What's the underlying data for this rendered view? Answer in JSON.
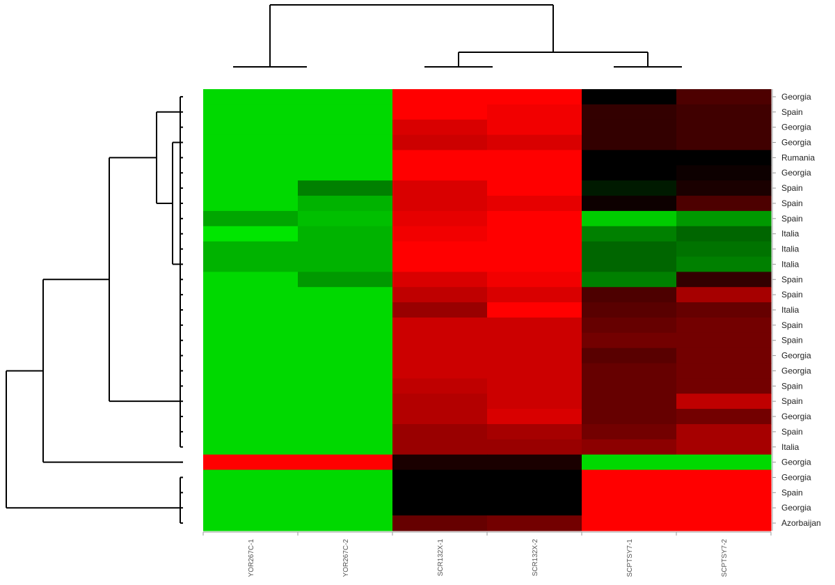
{
  "chart_data": {
    "type": "heatmap",
    "title": "",
    "colormap": {
      "low": "#00ff00",
      "mid": "#000000",
      "high": "#ff0000"
    },
    "value_range": [
      -1,
      1
    ],
    "columns": [
      "YOR267C-1",
      "YOR267C-2",
      "SCR132X-1",
      "SCR132X-2",
      "SCPTSY7-1",
      "SCPTSY7-2"
    ],
    "row_labels": [
      "Georgia",
      "Spain",
      "Georgia",
      "Georgia",
      "Rumania",
      "Georgia",
      "Spain",
      "Spain",
      "Spain",
      "Italia",
      "Italia",
      "Italia",
      "Spain",
      "Spain",
      "Italia",
      "Spain",
      "Spain",
      "Georgia",
      "Georgia",
      "Spain",
      "Spain",
      "Georgia",
      "Spain",
      "Italia",
      "Georgia",
      "Georgia",
      "Spain",
      "Georgia",
      "Azorbaijan"
    ],
    "values": [
      [
        -0.85,
        -0.85,
        1.0,
        1.0,
        0.0,
        0.3
      ],
      [
        -0.85,
        -0.85,
        1.0,
        0.95,
        0.2,
        0.25
      ],
      [
        -0.85,
        -0.85,
        0.85,
        0.95,
        0.2,
        0.25
      ],
      [
        -0.85,
        -0.85,
        0.8,
        0.85,
        0.2,
        0.25
      ],
      [
        -0.85,
        -0.85,
        1.0,
        1.0,
        0.0,
        0.0
      ],
      [
        -0.85,
        -0.85,
        1.0,
        1.0,
        0.0,
        0.05
      ],
      [
        -0.85,
        -0.5,
        0.85,
        1.0,
        -0.1,
        0.1
      ],
      [
        -0.85,
        -0.7,
        0.85,
        0.9,
        0.05,
        0.3
      ],
      [
        -0.65,
        -0.75,
        0.9,
        1.0,
        -0.8,
        -0.6
      ],
      [
        -0.9,
        -0.7,
        0.95,
        1.0,
        -0.5,
        -0.4
      ],
      [
        -0.7,
        -0.7,
        1.0,
        1.0,
        -0.4,
        -0.45
      ],
      [
        -0.7,
        -0.7,
        1.0,
        1.0,
        -0.4,
        -0.5
      ],
      [
        -0.85,
        -0.6,
        0.85,
        0.95,
        -0.5,
        0.2
      ],
      [
        -0.85,
        -0.85,
        0.75,
        0.85,
        0.3,
        0.65
      ],
      [
        -0.85,
        -0.85,
        0.6,
        1.0,
        0.35,
        0.4
      ],
      [
        -0.85,
        -0.85,
        0.8,
        0.8,
        0.4,
        0.45
      ],
      [
        -0.85,
        -0.85,
        0.8,
        0.8,
        0.45,
        0.45
      ],
      [
        -0.85,
        -0.85,
        0.8,
        0.8,
        0.35,
        0.45
      ],
      [
        -0.85,
        -0.85,
        0.8,
        0.8,
        0.4,
        0.45
      ],
      [
        -0.85,
        -0.85,
        0.75,
        0.8,
        0.4,
        0.45
      ],
      [
        -0.85,
        -0.85,
        0.7,
        0.8,
        0.4,
        0.75
      ],
      [
        -0.85,
        -0.85,
        0.7,
        0.85,
        0.4,
        0.45
      ],
      [
        -0.85,
        -0.85,
        0.6,
        0.65,
        0.45,
        0.65
      ],
      [
        -0.85,
        -0.85,
        0.6,
        0.6,
        0.55,
        0.65
      ],
      [
        1.0,
        1.0,
        0.1,
        0.1,
        -0.85,
        -0.85
      ],
      [
        -0.85,
        -0.85,
        0.0,
        0.0,
        1.0,
        1.0
      ],
      [
        -0.85,
        -0.85,
        0.0,
        0.0,
        1.0,
        1.0
      ],
      [
        -0.85,
        -0.85,
        0.0,
        0.0,
        1.0,
        1.0
      ],
      [
        -0.85,
        -0.85,
        0.4,
        0.45,
        1.0,
        1.0
      ]
    ],
    "column_dendrogram": {
      "merges": [
        [
          4,
          5
        ],
        [
          2,
          3
        ],
        [
          7,
          6
        ],
        [
          0,
          1
        ],
        [
          9,
          8
        ]
      ],
      "order": [
        0,
        1,
        2,
        3,
        4,
        5
      ]
    },
    "row_dendrogram": {
      "groups": [
        "0-23",
        "24",
        "25-28"
      ],
      "order": [
        0,
        1,
        2,
        3,
        4,
        5,
        6,
        7,
        8,
        9,
        10,
        11,
        12,
        13,
        14,
        15,
        16,
        17,
        18,
        19,
        20,
        21,
        22,
        23,
        24,
        25,
        26,
        27,
        28
      ]
    },
    "grid": false,
    "legend": "none"
  }
}
